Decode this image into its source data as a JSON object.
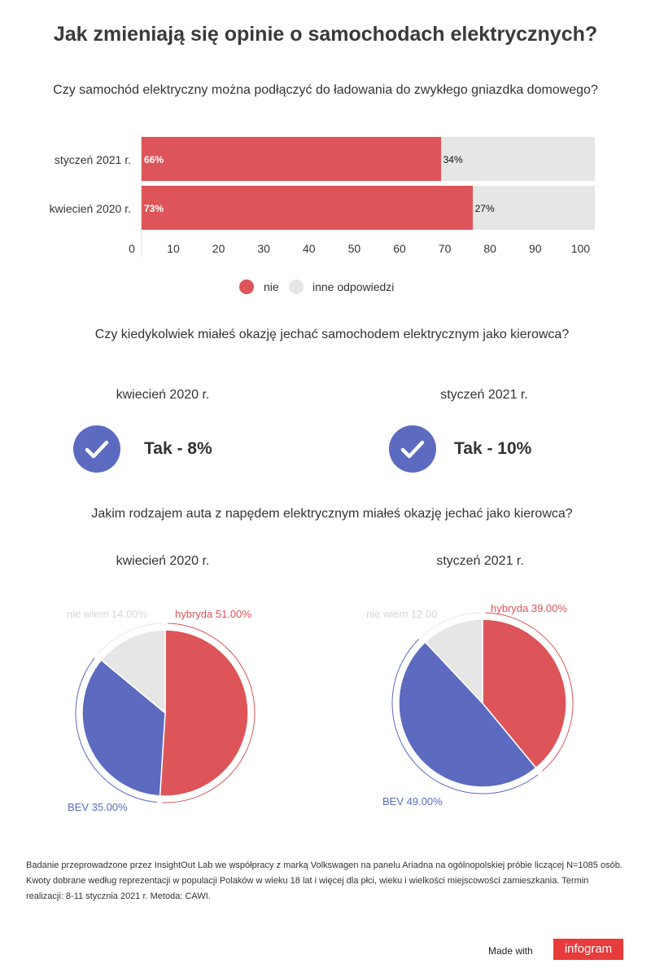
{
  "title": "Jak zmieniają się opinie o samochodach elektrycznych?",
  "chart_data": [
    {
      "type": "bar",
      "orientation": "horizontal",
      "stacked": true,
      "title": "Czy samochód elektryczny można podłączyć do ładowania do zwykłego gniazdka domowego?",
      "categories": [
        "styczeń 2021 r.",
        "kwiecień 2020 r."
      ],
      "series": [
        {
          "name": "nie",
          "values": [
            66,
            73
          ],
          "labels": [
            "66%",
            "73%"
          ],
          "color": "#dd5459"
        },
        {
          "name": "inne odpowiedzi",
          "values": [
            34,
            27
          ],
          "labels": [
            "34%",
            "27%"
          ],
          "color": "#e6e6e6"
        }
      ],
      "xlim": [
        0,
        100
      ],
      "xticks": [
        0,
        10,
        20,
        30,
        40,
        50,
        60,
        70,
        80,
        90,
        100
      ],
      "legend": "bottom-center"
    },
    {
      "type": "pie",
      "title": "kwiecień 2020 r.",
      "labels": [
        "hybryda",
        "BEV",
        "nie wiem"
      ],
      "values": [
        51,
        35,
        14
      ],
      "label_texts": [
        "hybryda 51.00%",
        "BEV 35.00%",
        "nie wiem 14.00%"
      ],
      "colors": [
        "#dd5459",
        "#5c6bc0",
        "#e6e6e6"
      ]
    },
    {
      "type": "pie",
      "title": "styczeń 2021 r.",
      "labels": [
        "hybryda",
        "BEV",
        "nie wiem"
      ],
      "values": [
        39,
        49,
        12
      ],
      "label_texts": [
        "hybryda 39.00%",
        "BEV 49.00%",
        "nie wiem 12.00"
      ],
      "colors": [
        "#dd5459",
        "#5c6bc0",
        "#e6e6e6"
      ]
    }
  ],
  "driver_question": {
    "title": "Czy kiedykolwiek miałeś okazję jechać samochodem elektrycznym jako kierowca?",
    "items": [
      {
        "period": "kwiecień 2020 r.",
        "result": "Tak - 8%"
      },
      {
        "period": "styczeń 2021 r.",
        "result": "Tak - 10%"
      }
    ]
  },
  "pie_question": "Jakim rodzajem auta z napędem elektrycznym miałeś okazję jechać jako kierowca?",
  "source_note": "Badanie przeprowadzone przez InsightOut Lab we współpracy z marką Volkswagen na panelu Ariadna na ogólnopolskiej próbie liczącej N=1085 osób. Kwoty dobrane według reprezentacji w populacji Polaków w wieku 18 lat i więcej dla płci, wieku i wielkości miejscowości zamieszkania. Termin realizacji: 8-11 stycznia 2021 r. Metoda: CAWI.",
  "footer": {
    "made_with": "Made with",
    "brand": "infogram"
  },
  "icons": {
    "check": "check-circle-icon"
  }
}
